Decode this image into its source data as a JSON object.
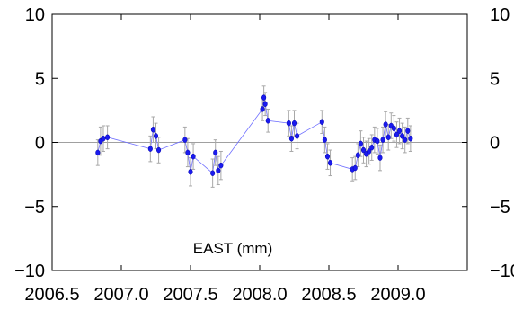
{
  "chart_data": {
    "type": "scatter",
    "label": "EAST (mm)",
    "xlim": [
      2006.5,
      2009.5
    ],
    "ylim": [
      -10,
      10
    ],
    "x_ticks": [
      2006.5,
      2007.0,
      2007.5,
      2008.0,
      2008.5,
      2009.0
    ],
    "x_tick_labels": [
      "2006.5",
      "2007.0",
      "2007.5",
      "2008.0",
      "2008.5",
      "2009.0"
    ],
    "y_ticks": [
      -10,
      -5,
      0,
      5,
      10
    ],
    "y_tick_labels": [
      "−10",
      "−5",
      "0",
      "5",
      "10"
    ],
    "zero_line": true,
    "grid": false,
    "colors": {
      "marker": "#1a1aee",
      "line": "#7070ff",
      "error": "#a8a8a8",
      "zero": "#a0a0a0"
    },
    "points": [
      {
        "x": 2006.83,
        "y": -0.8,
        "err": 1.0
      },
      {
        "x": 2006.85,
        "y": 0.1,
        "err": 1.1
      },
      {
        "x": 2006.87,
        "y": 0.3,
        "err": 1.0
      },
      {
        "x": 2006.9,
        "y": 0.4,
        "err": 0.9
      },
      {
        "x": 2007.21,
        "y": -0.5,
        "err": 1.0
      },
      {
        "x": 2007.23,
        "y": 1.0,
        "err": 1.0
      },
      {
        "x": 2007.25,
        "y": 0.5,
        "err": 1.0
      },
      {
        "x": 2007.27,
        "y": -0.6,
        "err": 1.0
      },
      {
        "x": 2007.46,
        "y": 0.2,
        "err": 1.0
      },
      {
        "x": 2007.48,
        "y": -0.8,
        "err": 1.1
      },
      {
        "x": 2007.5,
        "y": -2.3,
        "err": 1.1
      },
      {
        "x": 2007.52,
        "y": -1.1,
        "err": 1.0
      },
      {
        "x": 2007.66,
        "y": -2.4,
        "err": 1.1
      },
      {
        "x": 2007.68,
        "y": -0.8,
        "err": 1.0
      },
      {
        "x": 2007.7,
        "y": -2.2,
        "err": 1.1
      },
      {
        "x": 2007.72,
        "y": -1.8,
        "err": 1.1
      },
      {
        "x": 2008.02,
        "y": 2.6,
        "err": 0.9
      },
      {
        "x": 2008.03,
        "y": 3.5,
        "err": 0.9
      },
      {
        "x": 2008.04,
        "y": 3.0,
        "err": 0.9
      },
      {
        "x": 2008.06,
        "y": 1.7,
        "err": 0.9
      },
      {
        "x": 2008.21,
        "y": 1.5,
        "err": 1.0
      },
      {
        "x": 2008.23,
        "y": 0.3,
        "err": 1.0
      },
      {
        "x": 2008.25,
        "y": 1.5,
        "err": 1.0
      },
      {
        "x": 2008.27,
        "y": 0.5,
        "err": 1.0
      },
      {
        "x": 2008.45,
        "y": 1.6,
        "err": 0.9
      },
      {
        "x": 2008.47,
        "y": 0.2,
        "err": 1.0
      },
      {
        "x": 2008.49,
        "y": -1.1,
        "err": 1.0
      },
      {
        "x": 2008.51,
        "y": -1.6,
        "err": 1.0
      },
      {
        "x": 2008.67,
        "y": -2.1,
        "err": 0.9
      },
      {
        "x": 2008.69,
        "y": -2.0,
        "err": 0.9
      },
      {
        "x": 2008.71,
        "y": -1.0,
        "err": 0.9
      },
      {
        "x": 2008.73,
        "y": -0.1,
        "err": 1.0
      },
      {
        "x": 2008.75,
        "y": -0.6,
        "err": 1.0
      },
      {
        "x": 2008.77,
        "y": -0.9,
        "err": 1.0
      },
      {
        "x": 2008.79,
        "y": -0.7,
        "err": 1.0
      },
      {
        "x": 2008.81,
        "y": -0.4,
        "err": 1.0
      },
      {
        "x": 2008.83,
        "y": 0.2,
        "err": 1.0
      },
      {
        "x": 2008.85,
        "y": 0.1,
        "err": 1.0
      },
      {
        "x": 2008.87,
        "y": -1.2,
        "err": 1.0
      },
      {
        "x": 2008.89,
        "y": 0.2,
        "err": 1.0
      },
      {
        "x": 2008.91,
        "y": 1.4,
        "err": 1.0
      },
      {
        "x": 2008.93,
        "y": 0.4,
        "err": 1.0
      },
      {
        "x": 2008.95,
        "y": 1.3,
        "err": 1.0
      },
      {
        "x": 2008.97,
        "y": 1.1,
        "err": 1.0
      },
      {
        "x": 2008.99,
        "y": 0.6,
        "err": 1.0
      },
      {
        "x": 2009.01,
        "y": 0.9,
        "err": 1.0
      },
      {
        "x": 2009.03,
        "y": 0.5,
        "err": 1.0
      },
      {
        "x": 2009.05,
        "y": 0.2,
        "err": 1.0
      },
      {
        "x": 2009.07,
        "y": 0.9,
        "err": 1.0
      },
      {
        "x": 2009.09,
        "y": 0.3,
        "err": 1.0
      }
    ]
  }
}
